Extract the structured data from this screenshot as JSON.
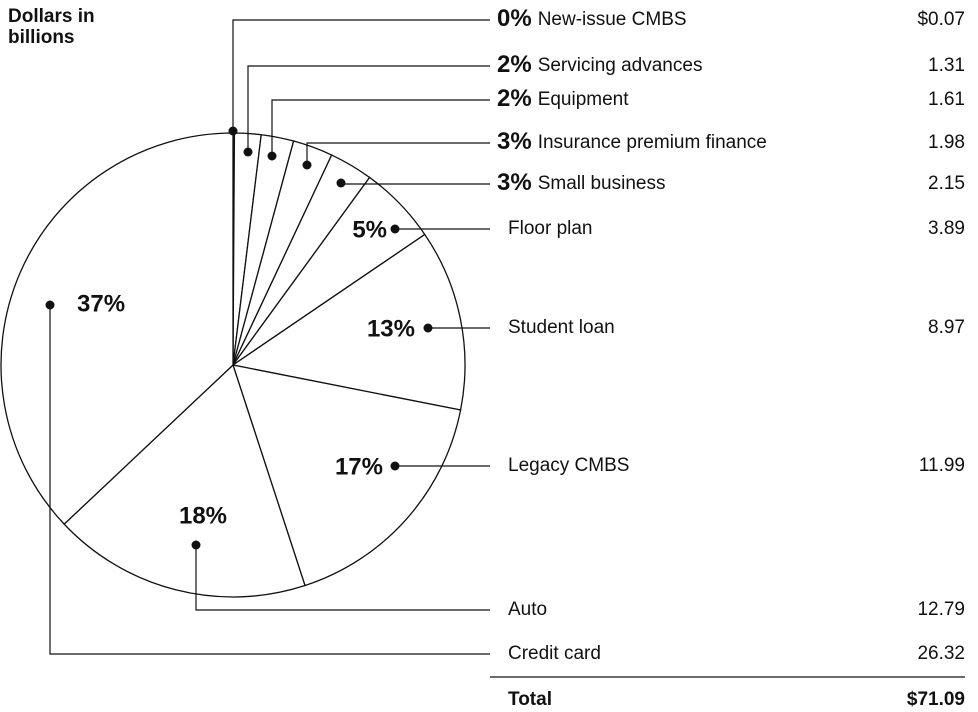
{
  "chart_data": {
    "type": "pie",
    "title": "Dollars in billions",
    "categories": [
      "New-issue CMBS",
      "Servicing advances",
      "Equipment",
      "Insurance premium finance",
      "Small business",
      "Floor plan",
      "Student loan",
      "Legacy CMBS",
      "Auto",
      "Credit card"
    ],
    "values": [
      0.07,
      1.31,
      1.61,
      1.98,
      2.15,
      3.89,
      8.97,
      11.99,
      12.79,
      26.32
    ],
    "value_labels": [
      "$0.07",
      "1.31",
      "1.61",
      "1.98",
      "2.15",
      "3.89",
      "8.97",
      "11.99",
      "12.79",
      "26.32"
    ],
    "percent_labels": [
      "0%",
      "2%",
      "2%",
      "3%",
      "3%",
      "5%",
      "13%",
      "17%",
      "18%",
      "37%"
    ],
    "color": "#ffffff",
    "total": {
      "label": "Total",
      "value": 71.09,
      "value_label": "$71.09"
    }
  }
}
